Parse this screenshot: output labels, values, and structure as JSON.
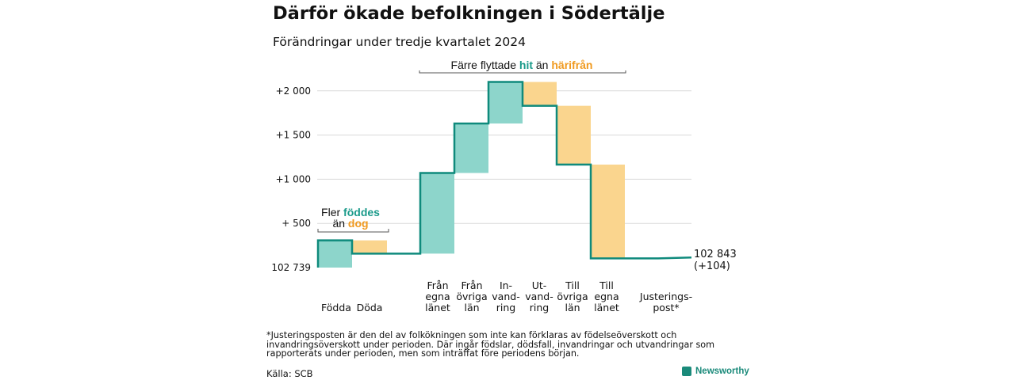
{
  "title": "Därför ökade befolkningen i Södertälje",
  "subtitle": "Förändringar under tredje kvartalet 2024",
  "colors": {
    "positive": "#8dd5cb",
    "negative": "#fad58e",
    "line": "#0f8a7c",
    "teal_text": "#1a9a8a",
    "orange_text": "#f09a20",
    "grid": "#d9d9d9"
  },
  "annotations": {
    "births": {
      "line1_prefix": "Fler ",
      "line1_highlight": "föddes",
      "line2_prefix": "än ",
      "line2_highlight": "dog"
    },
    "moves": {
      "prefix": "Färre flyttade ",
      "highlight1": "hit",
      "middle": " än ",
      "highlight2": "härifrån"
    }
  },
  "end_label": {
    "value": "102 843",
    "change": "(+104)"
  },
  "footnote": "*Justeringsposten är den del av folkökningen som inte kan förklaras av födelseöverskott och invandringsöverskott under perioden. Där ingår födslar, dödsfall, invandringar och utvandringar som rapporterats under perioden, men som inträffat före periodens början.",
  "source": "Källa: SCB",
  "logo_text": "Newsworthy",
  "chart_data": {
    "type": "waterfall",
    "title": "Därför ökade befolkningen i Södertälje",
    "subtitle": "Förändringar under tredje kvartalet 2024",
    "start_value": 102739,
    "end_value": 102843,
    "y_ticks": [
      {
        "value": 0,
        "label": "102 739"
      },
      {
        "value": 500,
        "label": "+  500"
      },
      {
        "value": 1000,
        "label": "+1 000"
      },
      {
        "value": 1500,
        "label": "+1 500"
      },
      {
        "value": 2000,
        "label": "+2 000"
      }
    ],
    "ylim": [
      0,
      2200
    ],
    "grid": true,
    "categories": [
      {
        "label": [
          "Födda"
        ],
        "value": 308
      },
      {
        "label": [
          "Döda"
        ],
        "value": -150
      },
      {
        "label": [
          "Från",
          "egna",
          "länet"
        ],
        "value": 913
      },
      {
        "label": [
          "Från",
          "övriga",
          "län"
        ],
        "value": 560
      },
      {
        "label": [
          "In-",
          "vand-",
          "ring"
        ],
        "value": 470
      },
      {
        "label": [
          "Ut-",
          "vand-",
          "ring"
        ],
        "value": -270
      },
      {
        "label": [
          "Till",
          "övriga",
          "län"
        ],
        "value": -665
      },
      {
        "label": [
          "Till",
          "egna",
          "länet"
        ],
        "value": -1062
      },
      {
        "label": [
          "Justerings-",
          "post*"
        ],
        "value": 10
      }
    ]
  }
}
